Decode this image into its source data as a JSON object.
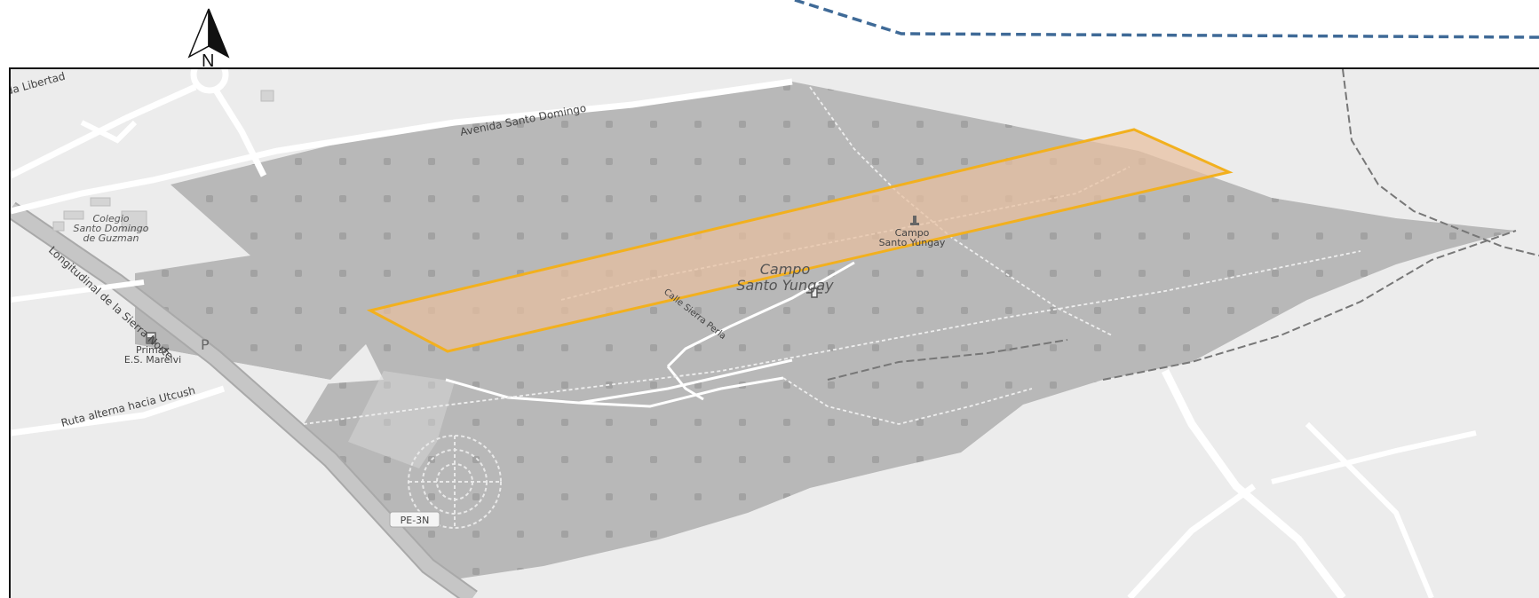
{
  "north_arrow": {
    "label": "N"
  },
  "labels": {
    "avenida_libertad": "da Libertad",
    "avenida_santo_domingo": "Avenida Santo Domingo",
    "colegio_line1": "Colegio",
    "colegio_line2": "Santo Domingo",
    "colegio_line3": "de Guzman",
    "longitudinal": "Longitudinal de la Sierra Norte",
    "primax_line1": "Primax",
    "primax_line2": "E.S. Marelvi",
    "parking": "P",
    "ruta_alterna": "Ruta alterna hacia Utcush",
    "campo_small_line1": "Campo",
    "campo_small_line2": "Santo Yungay",
    "campo_big_line1": "Campo",
    "campo_big_line2": "Santo Yungay",
    "calle_sierra_perla": "Calle Sierra Perla",
    "route_shield": "PE-3N"
  },
  "colors": {
    "map_background": "#ececec",
    "cemetery_fill": "#b8b8b8",
    "highlight_fill": "#e8bfa0",
    "highlight_stroke": "#f2b01e",
    "boundary_dashed": "#3f6a97",
    "highway": "#c6c6c6"
  },
  "icons": [
    "north-arrow-icon",
    "fuel-station-icon",
    "monument-icon",
    "cross-icon"
  ]
}
